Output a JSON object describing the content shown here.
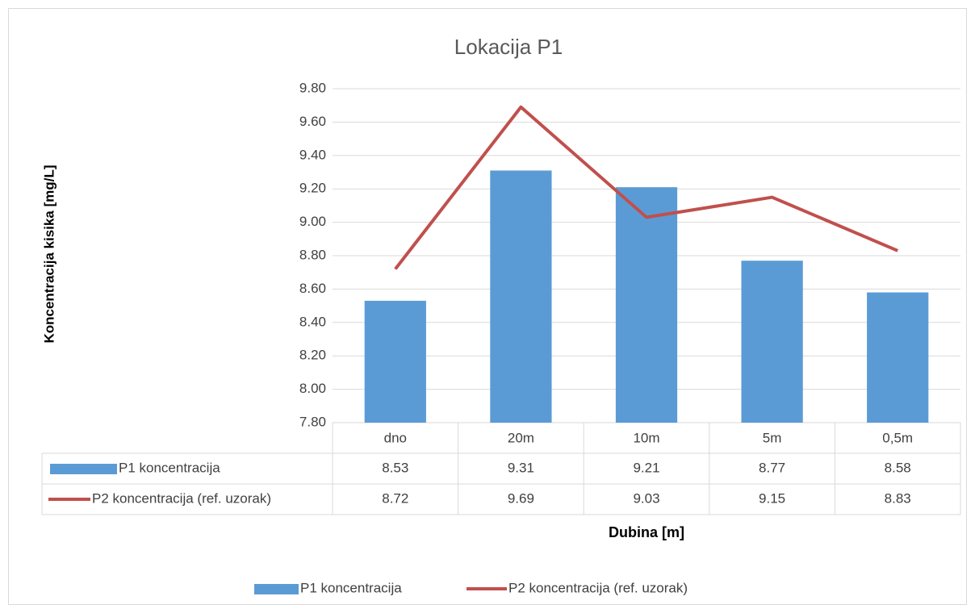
{
  "chart_data": {
    "type": "bar_line",
    "title": "Lokacija P1",
    "y_label": "Koncentracija kisika [mg/L]",
    "x_label": "Dubina [m]",
    "categories": [
      "dno",
      "20m",
      "10m",
      "5m",
      "0,5m"
    ],
    "series": [
      {
        "name": "P1 koncentracija",
        "type": "bar",
        "color": "#5b9bd5",
        "values": [
          8.53,
          9.31,
          9.21,
          8.77,
          8.58
        ]
      },
      {
        "name": "P2 koncentracija (ref. uzorak)",
        "type": "line",
        "color": "#c0504d",
        "values": [
          8.72,
          9.69,
          9.03,
          9.15,
          8.83
        ]
      }
    ],
    "ylim": [
      7.8,
      9.8
    ],
    "yticks": [
      {
        "value": 7.8,
        "label": "7.80"
      },
      {
        "value": 8.0,
        "label": "8.00"
      },
      {
        "value": 8.2,
        "label": "8.20"
      },
      {
        "value": 8.4,
        "label": "8.40"
      },
      {
        "value": 8.6,
        "label": "8.60"
      },
      {
        "value": 8.8,
        "label": "8.80"
      },
      {
        "value": 9.0,
        "label": "9.00"
      },
      {
        "value": 9.2,
        "label": "9.20"
      },
      {
        "value": 9.4,
        "label": "9.40"
      },
      {
        "value": 9.6,
        "label": "9.60"
      },
      {
        "value": 9.8,
        "label": "9.80"
      }
    ],
    "grid": true,
    "legend": "bottom"
  }
}
